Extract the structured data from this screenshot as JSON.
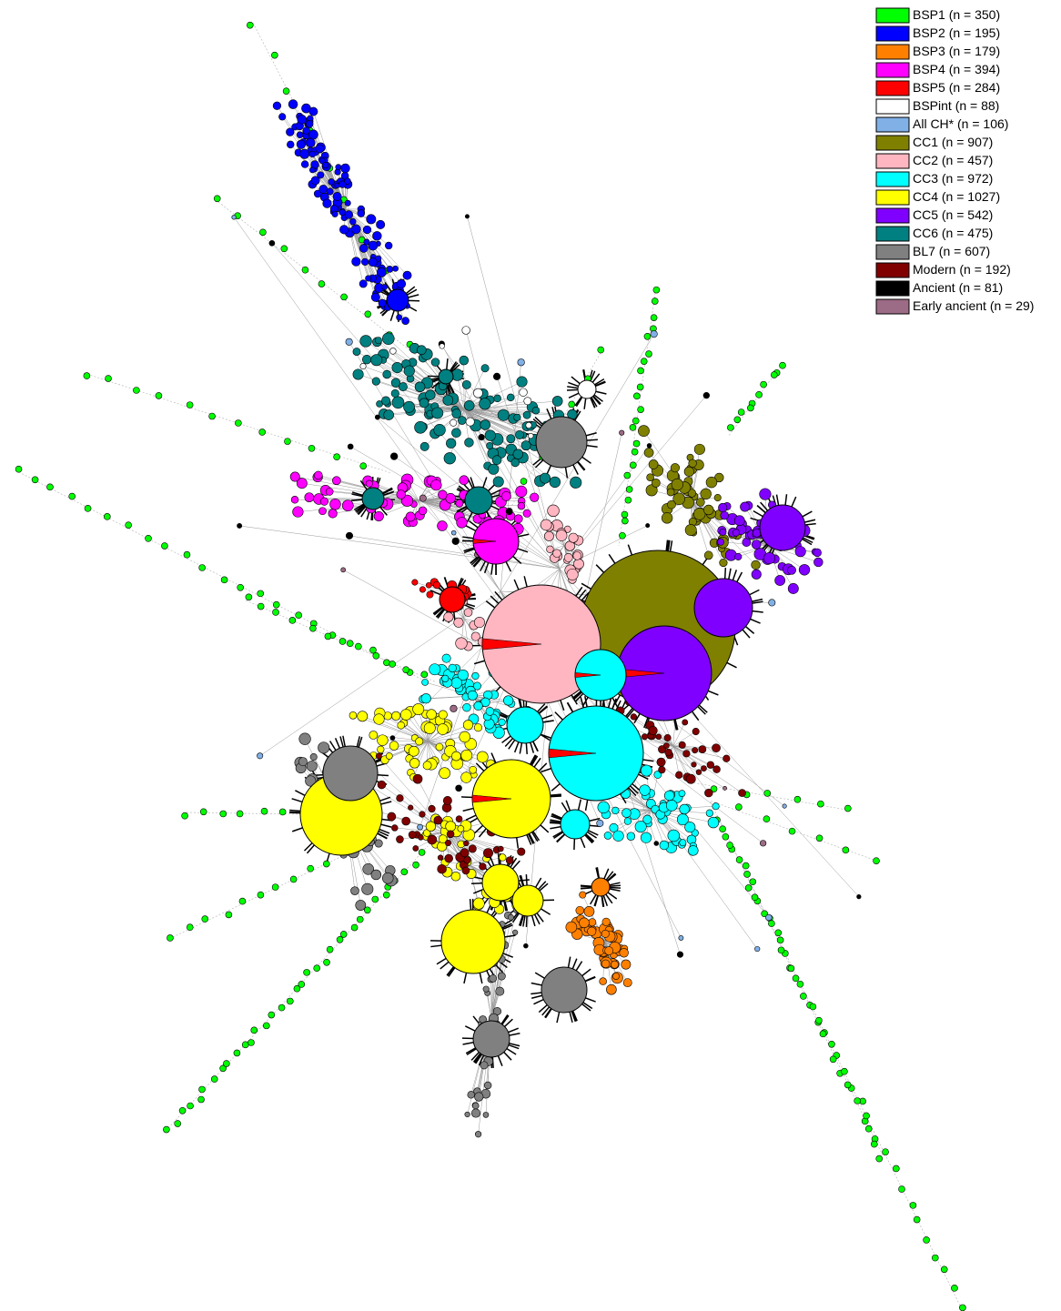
{
  "legend": {
    "items": [
      {
        "label": "BSP1 (n = 350)",
        "color": "#00ff00"
      },
      {
        "label": "BSP2 (n = 195)",
        "color": "#0000ff"
      },
      {
        "label": "BSP3 (n = 179)",
        "color": "#ff8000"
      },
      {
        "label": "BSP4 (n = 394)",
        "color": "#ff00ff"
      },
      {
        "label": "BSP5 (n = 284)",
        "color": "#ff0000"
      },
      {
        "label": "BSPint (n = 88)",
        "color": "#ffffff"
      },
      {
        "label": "All CH* (n = 106)",
        "color": "#80b0e6"
      },
      {
        "label": "CC1 (n = 907)",
        "color": "#808000"
      },
      {
        "label": "CC2 (n = 457)",
        "color": "#ffb6c1"
      },
      {
        "label": "CC3 (n = 972)",
        "color": "#00ffff"
      },
      {
        "label": "CC4 (n = 1027)",
        "color": "#ffff00"
      },
      {
        "label": "CC5 (n = 542)",
        "color": "#8000ff"
      },
      {
        "label": "CC6 (n = 475)",
        "color": "#008080"
      },
      {
        "label": "BL7 (n = 607)",
        "color": "#808080"
      },
      {
        "label": "Modern (n = 192)",
        "color": "#800000"
      },
      {
        "label": "Ancient (n = 81)",
        "color": "#000000"
      },
      {
        "label": "Early ancient (n = 29)",
        "color": "#9c6b85"
      }
    ]
  }
}
